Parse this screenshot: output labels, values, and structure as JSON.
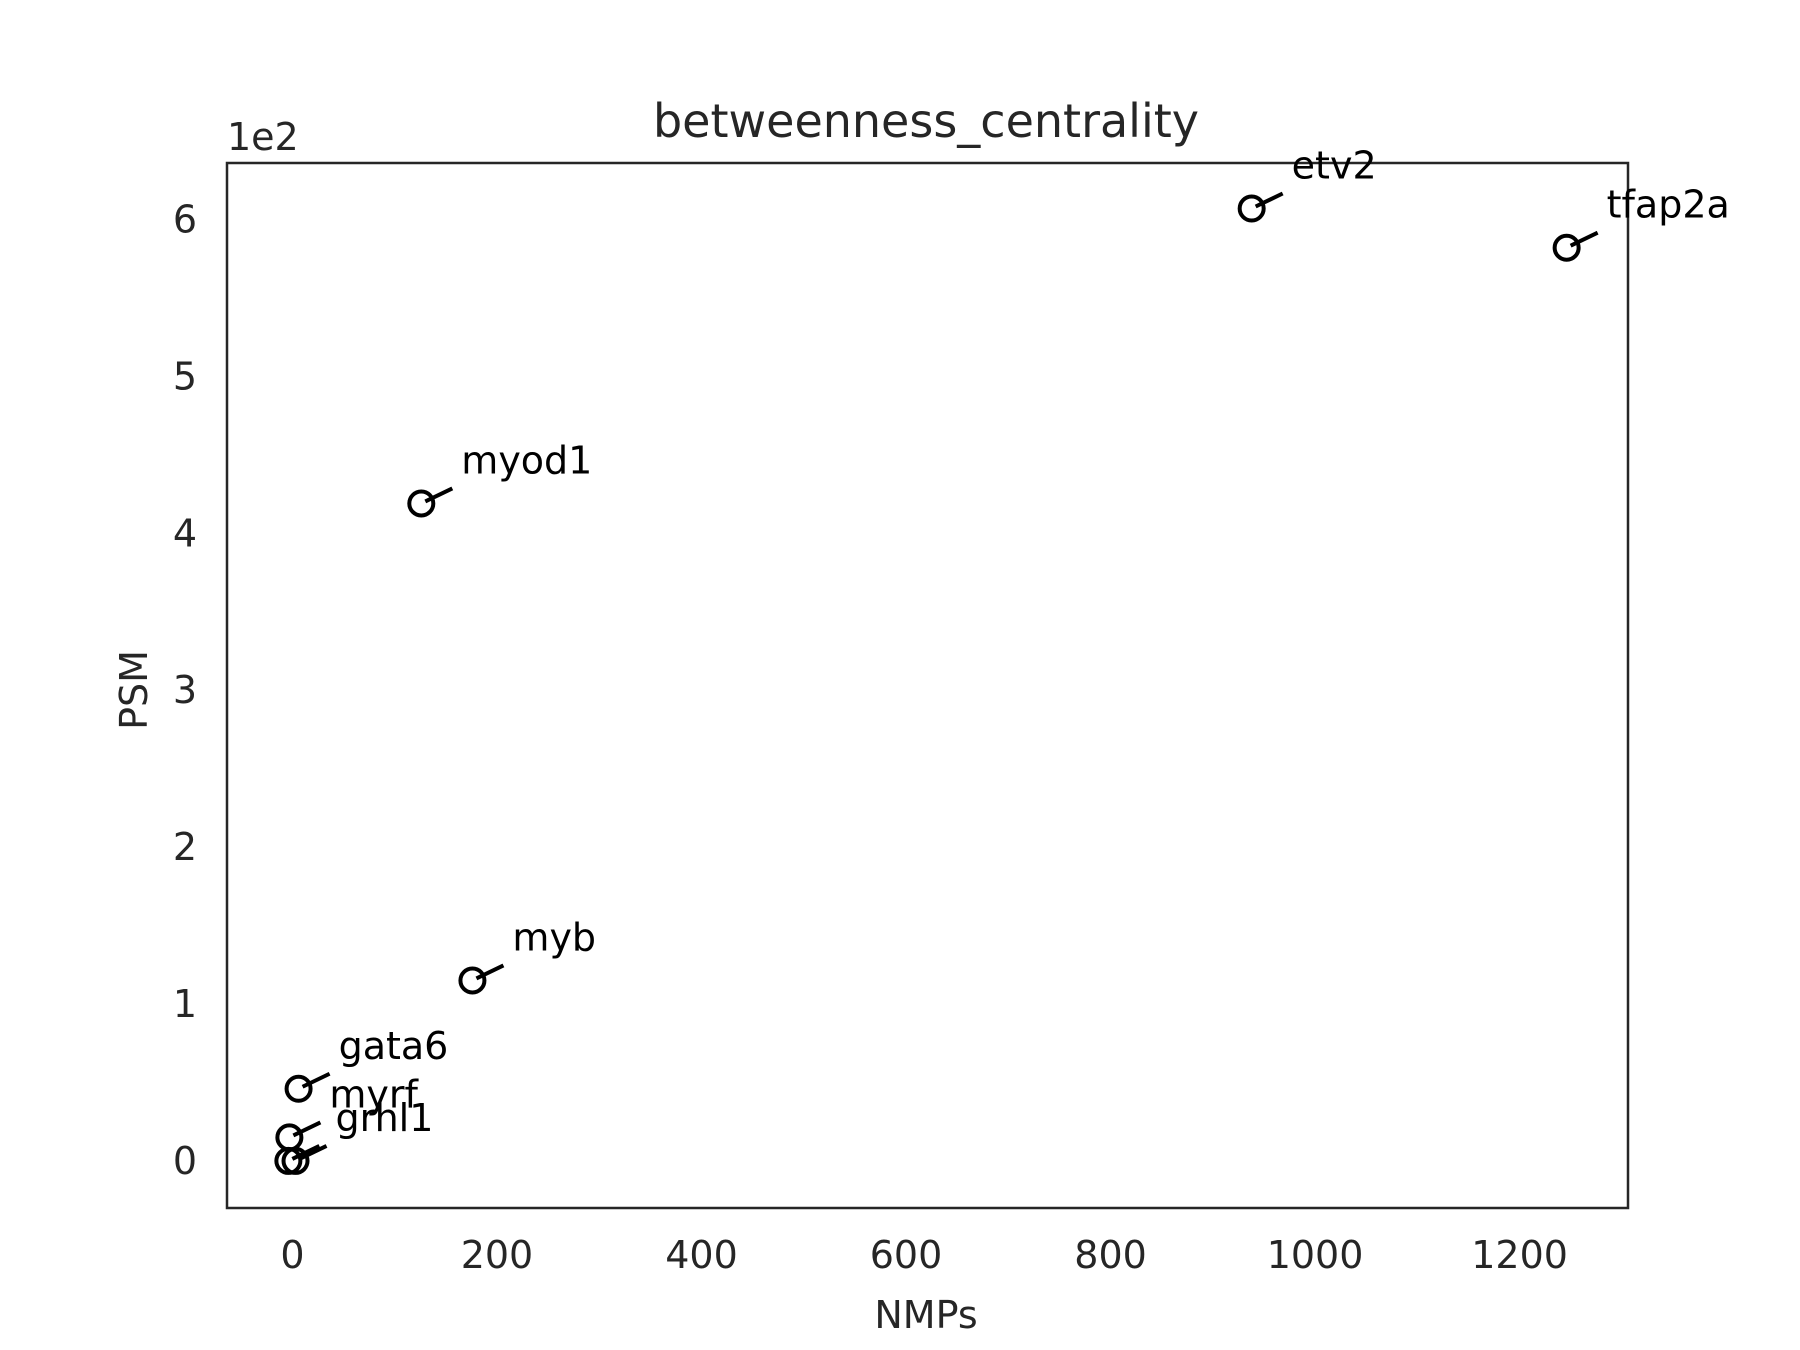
{
  "chart_data": {
    "type": "scatter",
    "title": "betweenness_centrality",
    "xlabel": "NMPs",
    "ylabel": "PSM",
    "y_offset_text": "1e2",
    "xlim": [
      -64,
      1306
    ],
    "ylim": [
      -0.3,
      6.36
    ],
    "xticks": [
      0,
      200,
      400,
      600,
      800,
      1000,
      1200
    ],
    "yticks": [
      0,
      1,
      2,
      3,
      4,
      5,
      6
    ],
    "grid": false,
    "marker": "open-circle",
    "color": "#000000",
    "points": [
      {
        "label": "etv2",
        "x": 938,
        "y": 6.07
      },
      {
        "label": "tfap2a",
        "x": 1246,
        "y": 5.82
      },
      {
        "label": "myod1",
        "x": 126,
        "y": 4.19
      },
      {
        "label": "myb",
        "x": 176,
        "y": 1.15
      },
      {
        "label": "gata6",
        "x": 6,
        "y": 0.46
      },
      {
        "label": "myrf",
        "x": -3,
        "y": 0.15
      },
      {
        "label": "grhl1",
        "x": 3,
        "y": 0.0
      },
      {
        "label": "",
        "x": -4,
        "y": 0.0
      }
    ]
  }
}
